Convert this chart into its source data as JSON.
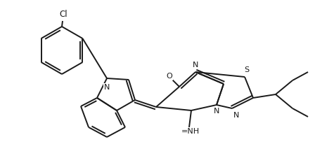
{
  "bg_color": "#ffffff",
  "lc": "#1a1a1a",
  "lw": 1.4,
  "fs": 8.0,
  "figsize": [
    4.48,
    2.36
  ],
  "dpi": 100,
  "xlim": [
    0,
    448
  ],
  "ylim": [
    0,
    236
  ]
}
